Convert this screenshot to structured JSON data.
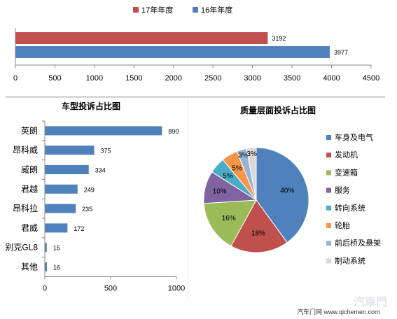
{
  "chart_data": [
    {
      "type": "bar",
      "orientation": "horizontal",
      "series": [
        {
          "name": "17年年度",
          "color": "#c0504d",
          "value": 3192
        },
        {
          "name": "16年年度",
          "color": "#4f81bd",
          "value": 3977
        }
      ],
      "xlim": [
        0,
        4500
      ],
      "xticks": [
        0,
        500,
        1000,
        1500,
        2000,
        2500,
        3000,
        3500,
        4000,
        4500
      ],
      "legend_position": "top",
      "grid": false
    },
    {
      "type": "bar",
      "orientation": "horizontal",
      "title": "车型投诉占比图",
      "categories": [
        "英朗",
        "昂科威",
        "威朗",
        "君越",
        "昂科拉",
        "君威",
        "别克GL8",
        "其他"
      ],
      "values": [
        890,
        375,
        334,
        249,
        235,
        172,
        15,
        16
      ],
      "color": "#4f81bd",
      "xlim": [
        0,
        1000
      ],
      "xticks": [
        0,
        500,
        1000
      ],
      "grid": false
    },
    {
      "type": "pie",
      "title": "质量层面投诉占比图",
      "legend_position": "right",
      "slices": [
        {
          "label": "车身及电气",
          "value": 40,
          "text": "40%",
          "color": "#4f81bd"
        },
        {
          "label": "发动机",
          "value": 18,
          "text": "18%",
          "color": "#c0504d"
        },
        {
          "label": "变速箱",
          "value": 16,
          "text": "16%",
          "color": "#9bbb59"
        },
        {
          "label": "服务",
          "value": 10,
          "text": "10%",
          "color": "#8064a2"
        },
        {
          "label": "转向系统",
          "value": 5,
          "text": "5%",
          "color": "#4bacc6"
        },
        {
          "label": "轮胎",
          "value": 5,
          "text": "5%",
          "color": "#f79646"
        },
        {
          "label": "前后桥及悬架",
          "value": 3,
          "text": "3%",
          "color": "#95b3d7"
        },
        {
          "label": "制动系统",
          "value": 3,
          "text": "3%",
          "color": "#d9d9d9"
        }
      ]
    }
  ],
  "footer": {
    "source": "汽车门网 www.qichemen.com",
    "watermark": "汽車門"
  }
}
